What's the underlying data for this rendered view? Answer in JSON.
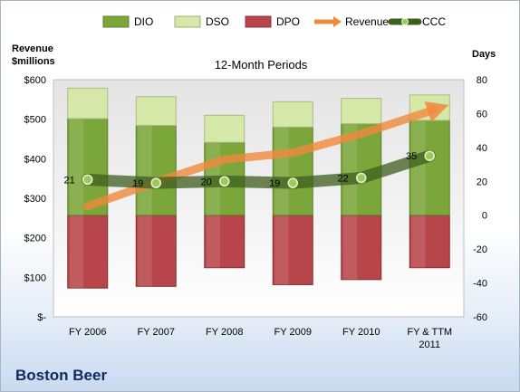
{
  "company": "Boston Beer",
  "chart_data": {
    "type": "bar",
    "title": "12-Month Periods",
    "left_axis_label": [
      "Revenue",
      "$millions"
    ],
    "right_axis_label": "Days",
    "categories": [
      [
        "FY 2006"
      ],
      [
        "FY 2007"
      ],
      [
        "FY 2008"
      ],
      [
        "FY 2009"
      ],
      [
        "FY 2010"
      ],
      [
        "FY & TTM",
        "2011"
      ]
    ],
    "left_axis": {
      "min": 0,
      "max": 600,
      "step": 100,
      "tick_labels": [
        "$-",
        "$100",
        "$200",
        "$300",
        "$400",
        "$500",
        "$600"
      ]
    },
    "right_axis": {
      "min": -60,
      "max": 80,
      "step": 20,
      "tick_labels": [
        "-60",
        "-40",
        "-20",
        "0",
        "20",
        "40",
        "60",
        "80"
      ]
    },
    "grid": false,
    "legend_position": "top",
    "legend": [
      "DIO",
      "DSO",
      "DPO",
      "Revenue",
      "CCC"
    ],
    "series": [
      {
        "name": "DIO",
        "axis": "right",
        "kind": "stacked-bar",
        "values": [
          57,
          53,
          43,
          52,
          54,
          56
        ]
      },
      {
        "name": "DSO",
        "axis": "right",
        "kind": "stacked-bar",
        "values": [
          18,
          17,
          16,
          15,
          15,
          15
        ]
      },
      {
        "name": "DPO",
        "axis": "right",
        "kind": "negative-bar",
        "values": [
          -43,
          -42,
          -31,
          -41,
          -38,
          -31
        ]
      },
      {
        "name": "Revenue",
        "axis": "left",
        "kind": "arrow-line",
        "values": [
          280,
          341,
          398,
          415,
          463,
          520
        ]
      },
      {
        "name": "CCC",
        "axis": "right",
        "kind": "line",
        "values": [
          21,
          19,
          20,
          19,
          22,
          35
        ],
        "labels": [
          "21",
          "19",
          "20",
          "19",
          "22",
          "35"
        ]
      }
    ],
    "colors": {
      "DIO": "#7aa63a",
      "DSO": "#d6e8a8",
      "DPO": "#b8454a",
      "Revenue": "#f08a3c",
      "CCC": "#3d5e1e"
    }
  }
}
